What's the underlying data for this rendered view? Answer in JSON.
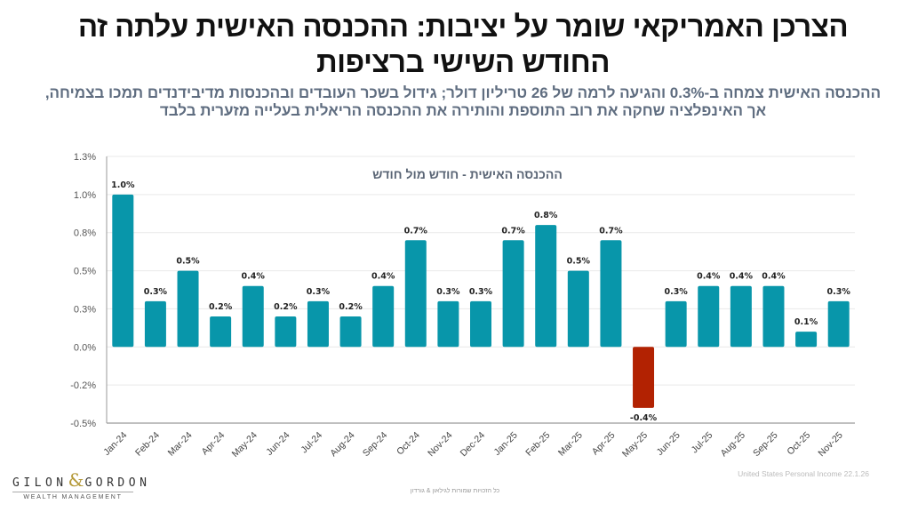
{
  "page": {
    "title": "הצרכן האמריקאי שומר על יציבות: ההכנסה האישית עלתה זה החודש השישי ברציפות",
    "subtitle": "ההכנסה האישית צמחה ב-0.3% והגיעה לרמה של 26 טריליון דולר; גידול בשכר העובדים ובהכנסות מדיבידנדים תמכו בצמיחה, אך האינפלציה שחקה את רוב התוספת והותירה את ההכנסה הריאלית בעלייה מזערית בלבד",
    "source": "United States Personal Income  22.1.26",
    "footer": "כל הזכויות שמורות לגילאון & גורדון",
    "logo": {
      "left": "GILON",
      "amp": "&",
      "right": "GORDON",
      "sub": "WEALTH MANAGEMENT"
    }
  },
  "colors": {
    "positive": "#0896aa",
    "negative": "#b22202",
    "grid": "#e9e9e9",
    "axis": "#999999"
  },
  "chart_data": {
    "type": "bar",
    "title": "ההכנסה האישית - חודש מול חודש",
    "xlabel": "",
    "ylabel": "",
    "ylim": [
      -0.5,
      1.25
    ],
    "yticks": [
      -0.5,
      -0.25,
      0,
      0.25,
      0.5,
      0.75,
      1.0,
      1.25
    ],
    "ytick_labels": [
      "-0.5%",
      "-0.2%",
      "0.0%",
      "0.3%",
      "0.5%",
      "0.8%",
      "1.0%",
      "1.3%"
    ],
    "grid": true,
    "legend": "none",
    "categories": [
      "Jan-24",
      "Feb-24",
      "Mar-24",
      "Apr-24",
      "May-24",
      "Jun-24",
      "Jul-24",
      "Aug-24",
      "Sep-24",
      "Oct-24",
      "Nov-24",
      "Dec-24",
      "Jan-25",
      "Feb-25",
      "Mar-25",
      "Apr-25",
      "May-25",
      "Jun-25",
      "Jul-25",
      "Aug-25",
      "Sep-25",
      "Oct-25",
      "Nov-25"
    ],
    "values": [
      1.0,
      0.3,
      0.5,
      0.2,
      0.4,
      0.2,
      0.3,
      0.2,
      0.4,
      0.7,
      0.3,
      0.3,
      0.7,
      0.8,
      0.5,
      0.7,
      -0.4,
      0.3,
      0.4,
      0.4,
      0.4,
      0.1,
      0.3
    ],
    "data_labels": [
      "1.0%",
      "0.3%",
      "0.5%",
      "0.2%",
      "0.4%",
      "0.2%",
      "0.3%",
      "0.2%",
      "0.4%",
      "0.7%",
      "0.3%",
      "0.3%",
      "0.7%",
      "0.8%",
      "0.5%",
      "0.7%",
      "-0.4%",
      "0.3%",
      "0.4%",
      "0.4%",
      "0.4%",
      "0.1%",
      "0.3%"
    ]
  }
}
